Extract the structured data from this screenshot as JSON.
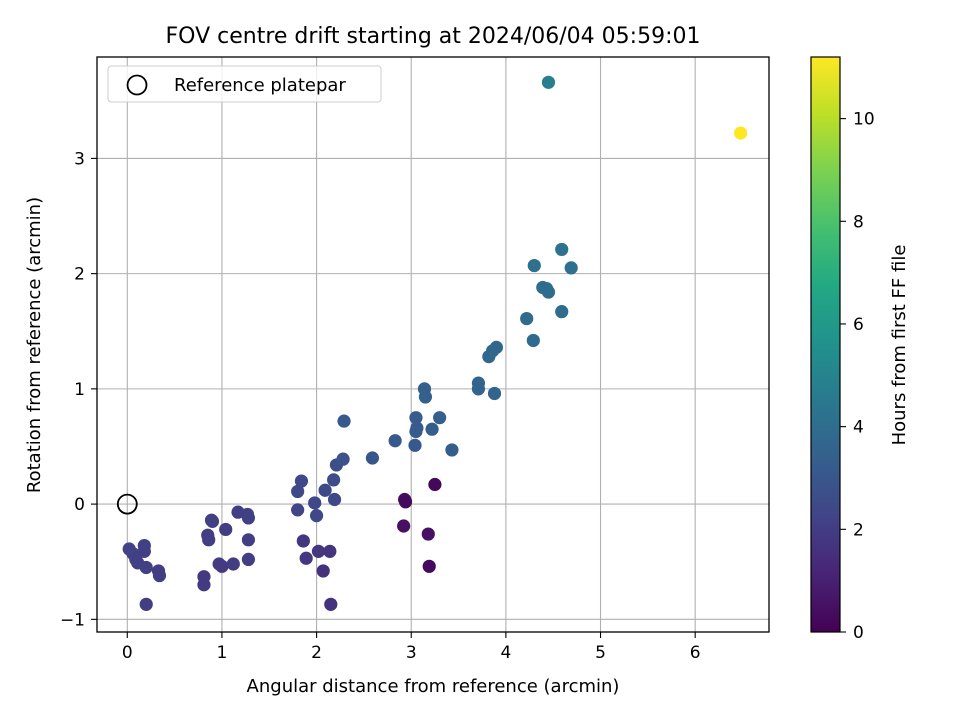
{
  "chart_data": {
    "type": "scatter",
    "title": "FOV centre drift starting at 2024/06/04 05:59:01",
    "xlabel": "Angular distance from reference (arcmin)",
    "ylabel": "Rotation from reference (arcmin)",
    "xlim": [
      -0.32,
      6.78
    ],
    "ylim": [
      -1.11,
      3.88
    ],
    "xticks": [
      0,
      1,
      2,
      3,
      4,
      5,
      6
    ],
    "yticks": [
      -1,
      0,
      1,
      2,
      3
    ],
    "grid": true,
    "legend": {
      "position": "top-left",
      "entries": [
        "Reference platepar"
      ]
    },
    "reference_point": {
      "x": 0,
      "y": 0
    },
    "colorbar": {
      "label": "Hours from first FF file",
      "range": [
        0,
        11.2
      ],
      "ticks": [
        0,
        2,
        4,
        6,
        8,
        10
      ],
      "colormap": "viridis"
    },
    "points": [
      {
        "x": 0.02,
        "y": -0.39,
        "hours": 2.2
      },
      {
        "x": 0.06,
        "y": -0.43,
        "hours": 2.2
      },
      {
        "x": 0.09,
        "y": -0.48,
        "hours": 2.1
      },
      {
        "x": 0.11,
        "y": -0.51,
        "hours": 2.1
      },
      {
        "x": 0.18,
        "y": -0.36,
        "hours": 2.1
      },
      {
        "x": 0.18,
        "y": -0.41,
        "hours": 2.1
      },
      {
        "x": 0.2,
        "y": -0.55,
        "hours": 2.1
      },
      {
        "x": 0.2,
        "y": -0.87,
        "hours": 2.0
      },
      {
        "x": 0.33,
        "y": -0.58,
        "hours": 2.0
      },
      {
        "x": 0.34,
        "y": -0.62,
        "hours": 2.0
      },
      {
        "x": 0.81,
        "y": -0.63,
        "hours": 1.9
      },
      {
        "x": 0.81,
        "y": -0.7,
        "hours": 1.9
      },
      {
        "x": 0.85,
        "y": -0.27,
        "hours": 2.0
      },
      {
        "x": 0.86,
        "y": -0.31,
        "hours": 2.0
      },
      {
        "x": 0.89,
        "y": -0.14,
        "hours": 2.1
      },
      {
        "x": 0.9,
        "y": -0.15,
        "hours": 2.1
      },
      {
        "x": 0.97,
        "y": -0.52,
        "hours": 2.0
      },
      {
        "x": 1.0,
        "y": -0.54,
        "hours": 1.9
      },
      {
        "x": 1.04,
        "y": -0.22,
        "hours": 2.0
      },
      {
        "x": 1.12,
        "y": -0.52,
        "hours": 2.0
      },
      {
        "x": 1.17,
        "y": -0.07,
        "hours": 2.1
      },
      {
        "x": 1.27,
        "y": -0.09,
        "hours": 2.1
      },
      {
        "x": 1.28,
        "y": -0.12,
        "hours": 2.1
      },
      {
        "x": 1.28,
        "y": -0.31,
        "hours": 2.0
      },
      {
        "x": 1.28,
        "y": -0.48,
        "hours": 2.0
      },
      {
        "x": 1.8,
        "y": 0.11,
        "hours": 2.4
      },
      {
        "x": 1.8,
        "y": -0.05,
        "hours": 2.3
      },
      {
        "x": 1.84,
        "y": 0.2,
        "hours": 2.4
      },
      {
        "x": 1.86,
        "y": -0.32,
        "hours": 1.8
      },
      {
        "x": 1.89,
        "y": -0.47,
        "hours": 1.8
      },
      {
        "x": 1.98,
        "y": 0.01,
        "hours": 2.4
      },
      {
        "x": 2.0,
        "y": -0.1,
        "hours": 2.4
      },
      {
        "x": 2.02,
        "y": -0.41,
        "hours": 1.8
      },
      {
        "x": 2.07,
        "y": -0.58,
        "hours": 1.6
      },
      {
        "x": 2.09,
        "y": 0.12,
        "hours": 2.5
      },
      {
        "x": 2.14,
        "y": -0.41,
        "hours": 1.7
      },
      {
        "x": 2.15,
        "y": -0.87,
        "hours": 1.6
      },
      {
        "x": 2.18,
        "y": 0.21,
        "hours": 2.6
      },
      {
        "x": 2.19,
        "y": 0.04,
        "hours": 2.5
      },
      {
        "x": 2.21,
        "y": 0.34,
        "hours": 2.7
      },
      {
        "x": 2.28,
        "y": 0.39,
        "hours": 2.8
      },
      {
        "x": 2.29,
        "y": 0.72,
        "hours": 3.1
      },
      {
        "x": 2.59,
        "y": 0.4,
        "hours": 3.0
      },
      {
        "x": 2.83,
        "y": 0.55,
        "hours": 3.1
      },
      {
        "x": 2.93,
        "y": 0.04,
        "hours": 0.4
      },
      {
        "x": 2.94,
        "y": 0.02,
        "hours": 0.3
      },
      {
        "x": 2.92,
        "y": -0.19,
        "hours": 0.5
      },
      {
        "x": 3.05,
        "y": 0.75,
        "hours": 3.2
      },
      {
        "x": 3.05,
        "y": 0.63,
        "hours": 3.2
      },
      {
        "x": 3.06,
        "y": 0.66,
        "hours": 3.2
      },
      {
        "x": 3.04,
        "y": 0.51,
        "hours": 3.1
      },
      {
        "x": 3.14,
        "y": 1.0,
        "hours": 3.4
      },
      {
        "x": 3.15,
        "y": 0.93,
        "hours": 3.4
      },
      {
        "x": 3.18,
        "y": -0.26,
        "hours": 0.5
      },
      {
        "x": 3.19,
        "y": -0.54,
        "hours": 0.3
      },
      {
        "x": 3.22,
        "y": 0.65,
        "hours": 3.3
      },
      {
        "x": 3.25,
        "y": 0.17,
        "hours": 0.2
      },
      {
        "x": 3.3,
        "y": 0.75,
        "hours": 3.4
      },
      {
        "x": 3.43,
        "y": 0.47,
        "hours": 3.3
      },
      {
        "x": 3.71,
        "y": 1.05,
        "hours": 3.6
      },
      {
        "x": 3.71,
        "y": 1.0,
        "hours": 3.6
      },
      {
        "x": 3.82,
        "y": 1.28,
        "hours": 3.7
      },
      {
        "x": 3.86,
        "y": 1.33,
        "hours": 3.7
      },
      {
        "x": 3.88,
        "y": 0.96,
        "hours": 3.6
      },
      {
        "x": 3.9,
        "y": 1.36,
        "hours": 3.7
      },
      {
        "x": 4.22,
        "y": 1.61,
        "hours": 3.9
      },
      {
        "x": 4.29,
        "y": 1.42,
        "hours": 3.9
      },
      {
        "x": 4.3,
        "y": 2.07,
        "hours": 4.1
      },
      {
        "x": 4.39,
        "y": 1.88,
        "hours": 4.0
      },
      {
        "x": 4.43,
        "y": 1.87,
        "hours": 4.0
      },
      {
        "x": 4.45,
        "y": 1.84,
        "hours": 4.0
      },
      {
        "x": 4.45,
        "y": 3.66,
        "hours": 4.8
      },
      {
        "x": 4.59,
        "y": 2.21,
        "hours": 4.2
      },
      {
        "x": 4.59,
        "y": 1.67,
        "hours": 4.0
      },
      {
        "x": 4.69,
        "y": 2.05,
        "hours": 4.1
      },
      {
        "x": 6.48,
        "y": 3.22,
        "hours": 11.2
      }
    ]
  }
}
